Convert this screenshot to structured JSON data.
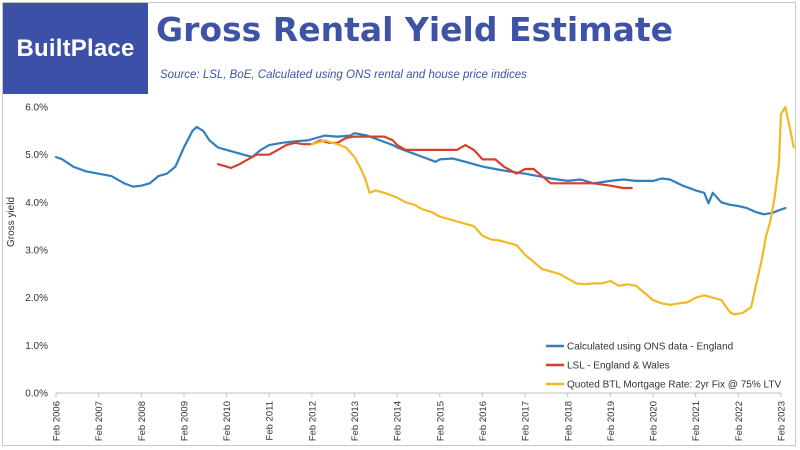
{
  "brand": {
    "logo_text": "BuiltPlace",
    "logo_color": "#3c50a8"
  },
  "header": {
    "title": "Gross Rental Yield Estimate",
    "subtitle": "Source: LSL, BoE, Calculated using ONS rental and house price indices"
  },
  "chart_data": {
    "type": "line",
    "ylabel": "Gross yield",
    "xlabel": "",
    "ylim": [
      0,
      6
    ],
    "xlim": [
      2006,
      2023
    ],
    "yticks": [
      "0.0%",
      "1.0%",
      "2.0%",
      "3.0%",
      "4.0%",
      "5.0%",
      "6.0%"
    ],
    "xticks": [
      "Feb 2006",
      "Feb 2007",
      "Feb 2008",
      "Feb 2009",
      "Feb 2010",
      "Feb 2011",
      "Feb 2012",
      "Feb 2013",
      "Feb 2014",
      "Feb 2015",
      "Feb 2016",
      "Feb 2017",
      "Feb 2018",
      "Feb 2019",
      "Feb 2020",
      "Feb 2021",
      "Feb 2022",
      "Feb 2023"
    ],
    "grid": false,
    "legend_position": "bottom-right",
    "series": [
      {
        "name": "Calculated using ONS data - England",
        "color": "#2f7fc1",
        "points": [
          [
            2006.0,
            4.95
          ],
          [
            2006.15,
            4.9
          ],
          [
            2006.4,
            4.75
          ],
          [
            2006.7,
            4.65
          ],
          [
            2007.0,
            4.6
          ],
          [
            2007.3,
            4.55
          ],
          [
            2007.6,
            4.4
          ],
          [
            2007.8,
            4.33
          ],
          [
            2008.0,
            4.35
          ],
          [
            2008.2,
            4.4
          ],
          [
            2008.4,
            4.55
          ],
          [
            2008.6,
            4.6
          ],
          [
            2008.8,
            4.75
          ],
          [
            2009.0,
            5.15
          ],
          [
            2009.2,
            5.5
          ],
          [
            2009.3,
            5.58
          ],
          [
            2009.45,
            5.5
          ],
          [
            2009.6,
            5.3
          ],
          [
            2009.8,
            5.15
          ],
          [
            2010.0,
            5.1
          ],
          [
            2010.2,
            5.05
          ],
          [
            2010.4,
            5.0
          ],
          [
            2010.6,
            4.95
          ],
          [
            2010.8,
            5.1
          ],
          [
            2011.0,
            5.2
          ],
          [
            2011.3,
            5.25
          ],
          [
            2011.6,
            5.28
          ],
          [
            2011.9,
            5.3
          ],
          [
            2012.1,
            5.35
          ],
          [
            2012.3,
            5.4
          ],
          [
            2012.6,
            5.38
          ],
          [
            2012.9,
            5.4
          ],
          [
            2013.0,
            5.45
          ],
          [
            2013.3,
            5.4
          ],
          [
            2013.6,
            5.3
          ],
          [
            2013.9,
            5.2
          ],
          [
            2014.0,
            5.15
          ],
          [
            2014.3,
            5.05
          ],
          [
            2014.6,
            4.95
          ],
          [
            2014.9,
            4.85
          ],
          [
            2015.0,
            4.9
          ],
          [
            2015.3,
            4.92
          ],
          [
            2015.6,
            4.85
          ],
          [
            2016.0,
            4.75
          ],
          [
            2016.3,
            4.7
          ],
          [
            2016.6,
            4.65
          ],
          [
            2017.0,
            4.6
          ],
          [
            2017.3,
            4.55
          ],
          [
            2017.6,
            4.5
          ],
          [
            2018.0,
            4.45
          ],
          [
            2018.3,
            4.48
          ],
          [
            2018.6,
            4.4
          ],
          [
            2019.0,
            4.45
          ],
          [
            2019.3,
            4.48
          ],
          [
            2019.6,
            4.45
          ],
          [
            2020.0,
            4.45
          ],
          [
            2020.2,
            4.5
          ],
          [
            2020.4,
            4.48
          ],
          [
            2020.7,
            4.35
          ],
          [
            2021.0,
            4.25
          ],
          [
            2021.2,
            4.2
          ],
          [
            2021.3,
            3.98
          ],
          [
            2021.4,
            4.2
          ],
          [
            2021.6,
            4.0
          ],
          [
            2021.8,
            3.95
          ],
          [
            2022.0,
            3.92
          ],
          [
            2022.2,
            3.88
          ],
          [
            2022.4,
            3.8
          ],
          [
            2022.6,
            3.75
          ],
          [
            2022.8,
            3.78
          ],
          [
            2023.0,
            3.85
          ],
          [
            2023.1,
            3.88
          ]
        ]
      },
      {
        "name": "LSL - England & Wales",
        "color": "#d6402b",
        "points": [
          [
            2009.8,
            4.8
          ],
          [
            2010.0,
            4.75
          ],
          [
            2010.1,
            4.72
          ],
          [
            2010.3,
            4.8
          ],
          [
            2010.5,
            4.9
          ],
          [
            2010.7,
            5.0
          ],
          [
            2011.0,
            5.0
          ],
          [
            2011.2,
            5.1
          ],
          [
            2011.4,
            5.2
          ],
          [
            2011.6,
            5.25
          ],
          [
            2011.8,
            5.22
          ],
          [
            2012.0,
            5.22
          ],
          [
            2012.2,
            5.3
          ],
          [
            2012.4,
            5.25
          ],
          [
            2012.6,
            5.25
          ],
          [
            2012.8,
            5.35
          ],
          [
            2013.0,
            5.38
          ],
          [
            2013.4,
            5.38
          ],
          [
            2013.7,
            5.38
          ],
          [
            2013.9,
            5.3
          ],
          [
            2014.0,
            5.2
          ],
          [
            2014.2,
            5.1
          ],
          [
            2014.6,
            5.1
          ],
          [
            2015.0,
            5.1
          ],
          [
            2015.4,
            5.1
          ],
          [
            2015.6,
            5.2
          ],
          [
            2015.8,
            5.1
          ],
          [
            2016.0,
            4.9
          ],
          [
            2016.3,
            4.9
          ],
          [
            2016.5,
            4.75
          ],
          [
            2016.8,
            4.6
          ],
          [
            2017.0,
            4.7
          ],
          [
            2017.2,
            4.7
          ],
          [
            2017.4,
            4.55
          ],
          [
            2017.6,
            4.4
          ],
          [
            2018.0,
            4.4
          ],
          [
            2018.6,
            4.4
          ],
          [
            2019.0,
            4.35
          ],
          [
            2019.3,
            4.3
          ],
          [
            2019.5,
            4.3
          ]
        ]
      },
      {
        "name": "Quoted BTL Mortgage Rate: 2yr Fix @ 75% LTV",
        "color": "#f2b927",
        "points": [
          [
            2012.0,
            5.22
          ],
          [
            2012.3,
            5.3
          ],
          [
            2012.6,
            5.22
          ],
          [
            2012.8,
            5.15
          ],
          [
            2013.0,
            4.95
          ],
          [
            2013.15,
            4.7
          ],
          [
            2013.25,
            4.5
          ],
          [
            2013.35,
            4.2
          ],
          [
            2013.5,
            4.25
          ],
          [
            2013.7,
            4.2
          ],
          [
            2014.0,
            4.1
          ],
          [
            2014.2,
            4.0
          ],
          [
            2014.4,
            3.95
          ],
          [
            2014.6,
            3.85
          ],
          [
            2014.8,
            3.8
          ],
          [
            2015.0,
            3.7
          ],
          [
            2015.2,
            3.65
          ],
          [
            2015.4,
            3.6
          ],
          [
            2015.6,
            3.55
          ],
          [
            2015.8,
            3.5
          ],
          [
            2016.0,
            3.3
          ],
          [
            2016.2,
            3.22
          ],
          [
            2016.4,
            3.2
          ],
          [
            2016.6,
            3.15
          ],
          [
            2016.8,
            3.1
          ],
          [
            2017.0,
            2.9
          ],
          [
            2017.2,
            2.75
          ],
          [
            2017.4,
            2.6
          ],
          [
            2017.6,
            2.55
          ],
          [
            2017.8,
            2.5
          ],
          [
            2018.0,
            2.4
          ],
          [
            2018.2,
            2.3
          ],
          [
            2018.4,
            2.28
          ],
          [
            2018.6,
            2.3
          ],
          [
            2018.8,
            2.3
          ],
          [
            2019.0,
            2.35
          ],
          [
            2019.2,
            2.25
          ],
          [
            2019.4,
            2.28
          ],
          [
            2019.6,
            2.25
          ],
          [
            2019.8,
            2.1
          ],
          [
            2020.0,
            1.95
          ],
          [
            2020.2,
            1.88
          ],
          [
            2020.4,
            1.85
          ],
          [
            2020.6,
            1.88
          ],
          [
            2020.8,
            1.9
          ],
          [
            2021.0,
            2.0
          ],
          [
            2021.2,
            2.05
          ],
          [
            2021.4,
            2.0
          ],
          [
            2021.6,
            1.95
          ],
          [
            2021.8,
            1.7
          ],
          [
            2021.9,
            1.65
          ],
          [
            2022.1,
            1.68
          ],
          [
            2022.3,
            1.8
          ],
          [
            2022.45,
            2.4
          ],
          [
            2022.55,
            2.8
          ],
          [
            2022.65,
            3.3
          ],
          [
            2022.75,
            3.6
          ],
          [
            2022.85,
            4.1
          ],
          [
            2022.95,
            4.8
          ],
          [
            2023.0,
            5.85
          ],
          [
            2023.1,
            6.0
          ],
          [
            2023.2,
            5.6
          ],
          [
            2023.3,
            5.15
          ]
        ]
      }
    ]
  }
}
